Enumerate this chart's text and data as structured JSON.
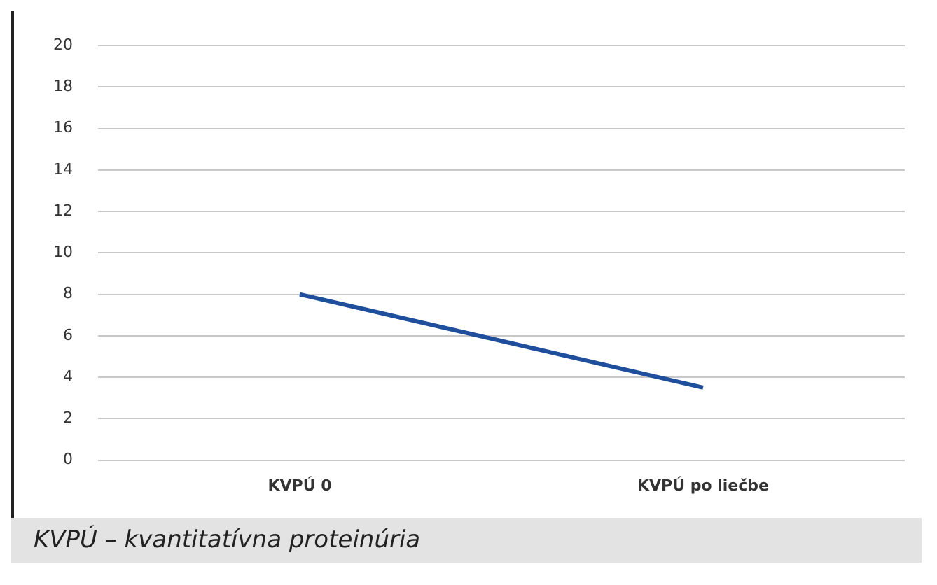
{
  "chart_data": {
    "type": "line",
    "categories": [
      "KVPÚ 0",
      "KVPÚ po liečbe"
    ],
    "series": [
      {
        "color": "#1f4e9c",
        "values": [
          8,
          3.5
        ]
      }
    ],
    "ylim": [
      0,
      20
    ],
    "yticks": [
      0,
      2,
      4,
      6,
      8,
      10,
      12,
      14,
      16,
      18,
      20
    ],
    "grid": "y",
    "legend": false,
    "marker": "none",
    "annotations": [
      "KVPÚ – kvantitatívna proteinúria"
    ]
  }
}
